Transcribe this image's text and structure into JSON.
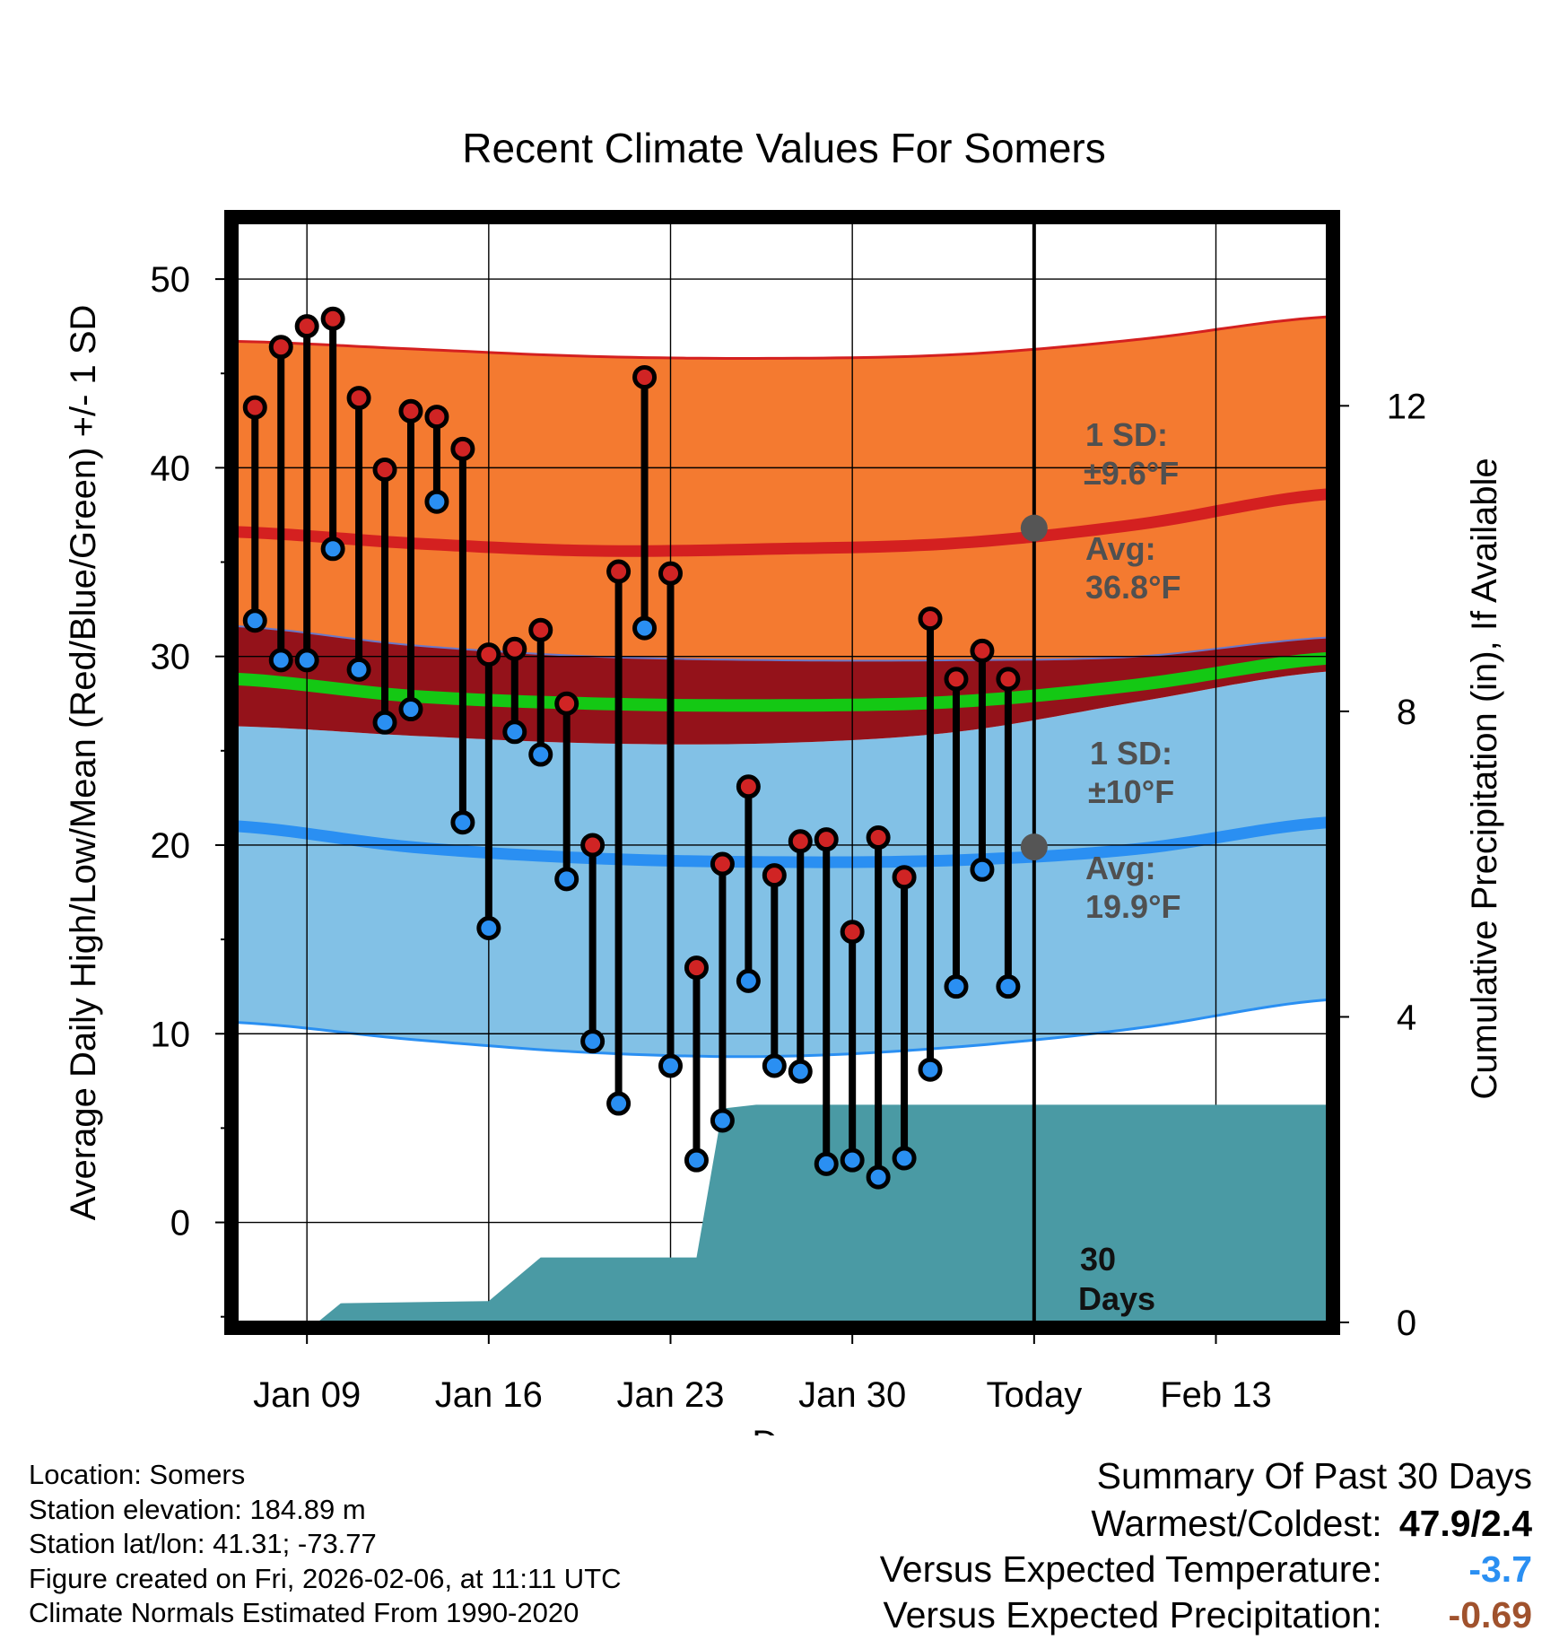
{
  "chart_data": {
    "type": "line",
    "title": "Recent Climate Values For Somers",
    "xlabel": "Day",
    "ylabel": "Average Daily High/Low/Mean (Red/Blue/Green) +/- 1 SD",
    "y2label": "Cumulative Precipitation (in), If Available",
    "x_tick_labels": [
      {
        "day": 3,
        "label": "Jan 09"
      },
      {
        "day": 10,
        "label": "Jan 16"
      },
      {
        "day": 17,
        "label": "Jan 23"
      },
      {
        "day": 24,
        "label": "Jan 30"
      },
      {
        "day": 31,
        "label": "Today"
      },
      {
        "day": 38,
        "label": "Feb 13"
      }
    ],
    "xlim": [
      0.3,
      42.3
    ],
    "ylim": [
      -5.3,
      53
    ],
    "y_ticks": [
      0,
      10,
      20,
      30,
      40,
      50
    ],
    "y2lim": [
      0,
      14.4
    ],
    "y2_ticks": [
      0,
      4,
      8,
      12
    ],
    "today_day": 31,
    "daily_observations": {
      "days": [
        1,
        2,
        3,
        4,
        5,
        6,
        7,
        8,
        9,
        10,
        11,
        12,
        13,
        14,
        15,
        16,
        17,
        18,
        19,
        20,
        21,
        22,
        23,
        24,
        25,
        26,
        27,
        28,
        29,
        30
      ],
      "high": [
        43.2,
        46.4,
        47.5,
        47.9,
        43.7,
        39.9,
        43.0,
        42.7,
        41.0,
        30.1,
        30.4,
        31.4,
        27.5,
        20.0,
        34.5,
        44.8,
        34.4,
        13.5,
        19.0,
        23.1,
        18.4,
        20.2,
        20.3,
        15.4,
        20.4,
        18.3,
        32.0,
        28.8,
        30.3,
        28.8
      ],
      "low": [
        31.9,
        29.8,
        29.8,
        35.7,
        29.3,
        26.5,
        27.2,
        38.2,
        21.2,
        15.6,
        26.0,
        24.8,
        18.2,
        9.6,
        6.3,
        31.5,
        8.3,
        3.3,
        5.4,
        12.8,
        8.3,
        8.0,
        3.1,
        3.3,
        2.4,
        3.4,
        8.1,
        12.5,
        18.7,
        12.5
      ]
    },
    "normal_high": {
      "days": [
        0.3,
        7,
        14,
        21,
        28,
        35,
        42.3
      ],
      "mean": [
        36.6,
        36.0,
        35.6,
        35.7,
        36.0,
        37.0,
        38.6
      ],
      "upper": [
        46.7,
        46.3,
        45.9,
        45.8,
        46.0,
        46.8,
        48.0
      ],
      "lower": [
        31.6,
        30.6,
        30.0,
        29.8,
        29.8,
        30.0,
        31.0
      ]
    },
    "normal_low": {
      "days": [
        0.3,
        7,
        14,
        21,
        28,
        35,
        42.3
      ],
      "mean": [
        21.0,
        19.9,
        19.3,
        19.1,
        19.2,
        19.8,
        21.2
      ],
      "upper": [
        26.3,
        25.8,
        25.4,
        25.4,
        26.0,
        27.6,
        29.2
      ],
      "lower": [
        10.6,
        9.7,
        9.0,
        8.8,
        9.3,
        10.3,
        11.8
      ]
    },
    "normal_mean": {
      "days": [
        0.3,
        7,
        14,
        21,
        28,
        35,
        42.3
      ],
      "values": [
        28.8,
        27.9,
        27.5,
        27.4,
        27.6,
        28.5,
        29.9
      ]
    },
    "precip_cumulative": {
      "days": [
        3.4,
        4.3,
        10.0,
        12.0,
        18.0,
        19.0,
        20.3,
        42.3
      ],
      "values": [
        0.0,
        0.25,
        0.28,
        0.85,
        0.85,
        2.8,
        2.85,
        2.85
      ]
    },
    "annotations": {
      "high_sd": "1 SD:",
      "high_sd_val": "±9.6°F",
      "high_avg": "Avg:",
      "high_avg_val": "36.8°F",
      "low_sd": "1 SD:",
      "low_sd_val": "±10°F",
      "low_avg": "Avg:",
      "low_avg_val": "19.9°F",
      "days_num": "30",
      "days_word": "Days"
    },
    "colors": {
      "high_band": "#f47a30",
      "high_line": "#d42020",
      "low_band": "#82c1e6",
      "low_line": "#2a8ff2",
      "overlap": "#94121a",
      "mean_line": "#14c814",
      "precip": "#4a9aa4",
      "high_dot": "#d02424",
      "low_dot": "#2a8ff2"
    }
  },
  "info": {
    "location": "Location: Somers",
    "elevation": "Station elevation: 184.89 m",
    "latlon": "Station lat/lon: 41.31; -73.77",
    "created": "Figure created on Fri, 2026-02-06, at 11:11 UTC",
    "normals": "Climate Normals Estimated From 1990-2020"
  },
  "summary": {
    "heading": "Summary Of Past 30 Days",
    "warm_cold_label": "Warmest/Coldest:",
    "warm_cold_value": "47.9/2.4",
    "temp_label": "Versus Expected Temperature:",
    "temp_value": "-3.7",
    "precip_label": "Versus Expected Precipitation:",
    "precip_value": "-0.69",
    "temp_color": "#2a8ff2",
    "precip_color": "#a0522d"
  }
}
